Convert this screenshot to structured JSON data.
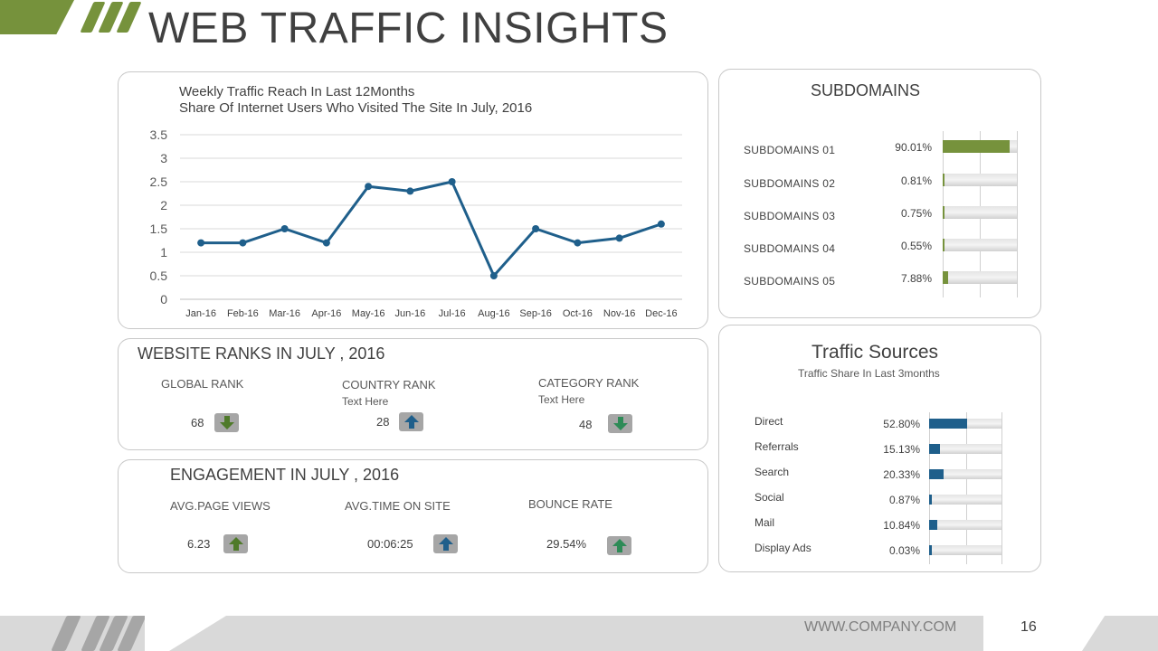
{
  "page": {
    "title": "WEB TRAFFIC INSIGHTS"
  },
  "colors": {
    "accent_green": "#76923c",
    "accent_blue": "#1f5f8b",
    "teal_arrow": "#2e8b57",
    "arrow_box": "#a6a6a6"
  },
  "chart_data": {
    "type": "line",
    "title": "Weekly Traffic Reach In  Last 12Months",
    "subtitle": "Share Of Internet  Users Who Visited The Site In  July,  2016",
    "categories": [
      "Jan-16",
      "Feb-16",
      "Mar-16",
      "Apr-16",
      "May-16",
      "Jun-16",
      "Jul-16",
      "Aug-16",
      "Sep-16",
      "Oct-16",
      "Nov-16",
      "Dec-16"
    ],
    "values": [
      1.2,
      1.2,
      1.5,
      1.2,
      2.4,
      2.3,
      2.5,
      0.5,
      1.5,
      1.2,
      1.3,
      1.6
    ],
    "ylim": [
      0,
      3.5
    ],
    "yticks": [
      "0",
      "0.5",
      "1",
      "1.5",
      "2",
      "2.5",
      "3",
      "3.5"
    ],
    "line_color": "#1f5f8b",
    "grid": true
  },
  "ranks": {
    "title": "WEBSITE RANKS IN JULY , 2016",
    "global": {
      "label": "GLOBAL RANK",
      "value": "68",
      "arrow": "down"
    },
    "country": {
      "label": "COUNTRY  RANK",
      "sub": "Text Here",
      "value": "28",
      "arrow": "up"
    },
    "category": {
      "label": "CATEGORY  RANK",
      "sub": "Text Here",
      "value": "48",
      "arrow": "down"
    }
  },
  "engagement": {
    "title": "ENGAGEMENT IN JULY , 2016",
    "page_views": {
      "label": "AVG.PAGE VIEWS",
      "value": "6.23",
      "arrow": "up"
    },
    "time_on_site": {
      "label": "AVG.TIME  ON SITE",
      "value": "00:06:25",
      "arrow": "up"
    },
    "bounce_rate": {
      "label": "BOUNCE RATE",
      "value": "29.54%",
      "arrow": "up"
    }
  },
  "subdomains": {
    "title": "SUBDOMAINS",
    "items": [
      {
        "label": "SUBDOMAINS  01",
        "pct": "90.01%",
        "fraction": 0.9001
      },
      {
        "label": "SUBDOMAINS  02",
        "pct": "0.81%",
        "fraction": 0.0081
      },
      {
        "label": "SUBDOMAINS  03",
        "pct": "0.75%",
        "fraction": 0.0075
      },
      {
        "label": "SUBDOMAINS  04",
        "pct": "0.55%",
        "fraction": 0.0055
      },
      {
        "label": "SUBDOMAINS  05",
        "pct": "7.88%",
        "fraction": 0.0788
      }
    ]
  },
  "traffic_sources": {
    "title": "Traffic Sources",
    "subtitle": "Traffic  Share In Last 3months",
    "items": [
      {
        "label": "Direct",
        "pct": "52.80%",
        "fraction": 0.528
      },
      {
        "label": "Referrals",
        "pct": "15.13%",
        "fraction": 0.1513
      },
      {
        "label": "Search",
        "pct": "20.33%",
        "fraction": 0.2033
      },
      {
        "label": "Social",
        "pct": "0.87%",
        "fraction": 0.0087
      },
      {
        "label": "Mail",
        "pct": "10.84%",
        "fraction": 0.1084
      },
      {
        "label": "Display Ads",
        "pct": "0.03%",
        "fraction": 0.0003
      }
    ]
  },
  "footer": {
    "url": "WWW.COMPANY.COM",
    "page_number": "16"
  }
}
